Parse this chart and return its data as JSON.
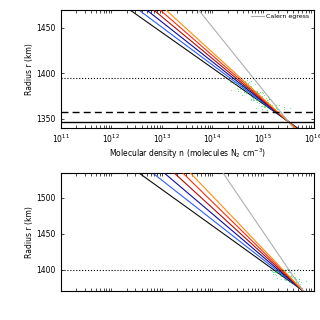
{
  "top_panel": {
    "xlabel": "Molecular density n (molecules N$_2$ cm$^{-3}$)",
    "ylabel": "Radius r (km)",
    "ylim": [
      1340,
      1470
    ],
    "xlim_log": [
      11,
      16
    ],
    "yticks": [
      1350,
      1400,
      1450
    ],
    "hline_solid": 1347,
    "hline_dashed": 1357,
    "hline_dotted": 1395,
    "legend_label": "Calern egress",
    "legend_color": "#aaaaaa"
  },
  "bottom_panel": {
    "ylabel": "Radius r (km)",
    "ylim": [
      1370,
      1535
    ],
    "xlim_log": [
      11,
      16
    ],
    "yticks": [
      1400,
      1450,
      1500
    ],
    "hline_dotted": 1400
  },
  "line_colors_top": [
    "#aaaaaa",
    "#ff8800",
    "#ff2200",
    "#aa0000",
    "#000099",
    "#2255ff",
    "#000000"
  ],
  "line_colors_bottom": [
    "#aaaaaa",
    "#ff8800",
    "#ff2200",
    "#aa0000",
    "#000099",
    "#2255ff",
    "#000000"
  ],
  "green_scatter_color": "#00dd44",
  "bg_color": "#ffffff"
}
